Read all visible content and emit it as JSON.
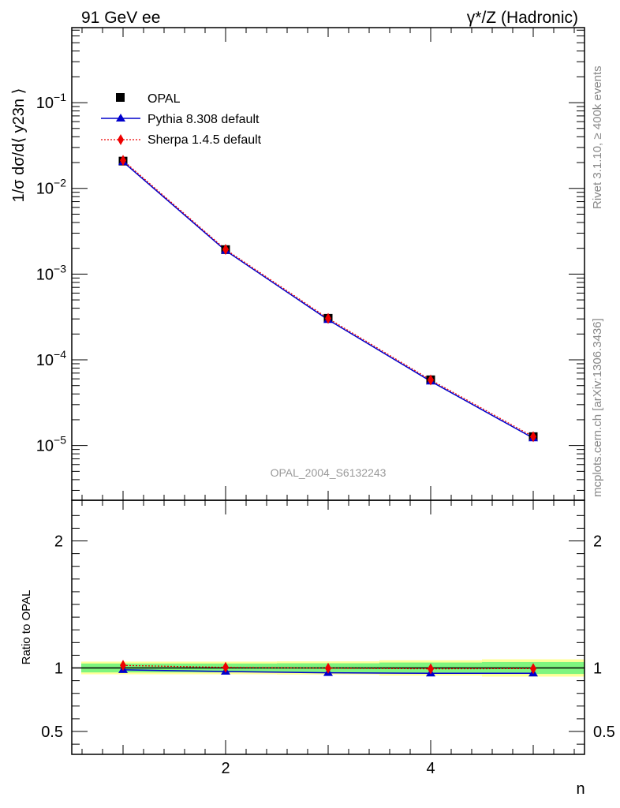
{
  "header": {
    "left": "91 GeV ee",
    "right": "γ*/Z (Hadronic)"
  },
  "side": {
    "rivet": "Rivet 3.1.10, ≥ 400k events",
    "mcplots": "mcplots.cern.ch [arXiv:1306.3436]"
  },
  "watermark": "OPAL_2004_S6132243",
  "colors": {
    "data": "#000000",
    "pythia": "#0000cc",
    "sherpa": "#ee0000",
    "band_inner": "#7ff57f",
    "band_outer": "#ffff99"
  },
  "chart_data": [
    {
      "type": "line",
      "title": "",
      "xlabel": "n",
      "ylabel": "1/σ dσ/d⟨ y23n ⟩",
      "yscale": "log",
      "xlim": [
        0.5,
        5.5
      ],
      "ylim": [
        2.3e-06,
        0.75
      ],
      "x": [
        1,
        2,
        3,
        4,
        5
      ],
      "y_ticks": [
        "10−5",
        "10−4",
        "10−3",
        "10−2",
        "10−1"
      ],
      "series": [
        {
          "name": "OPAL",
          "values": [
            0.0208,
            0.00193,
            0.000305,
            5.85e-05,
            1.27e-05
          ]
        },
        {
          "name": "Pythia 8.308 default",
          "values": [
            0.0204,
            0.00188,
            0.000293,
            5.62e-05,
            1.22e-05
          ]
        },
        {
          "name": "Sherpa 1.4.5 default",
          "values": [
            0.0212,
            0.00194,
            0.000304,
            5.83e-05,
            1.27e-05
          ]
        }
      ]
    },
    {
      "type": "line",
      "title": "",
      "xlabel": "n",
      "ylabel": "Ratio to OPAL",
      "xlim": [
        0.5,
        5.5
      ],
      "ylim": [
        0.32,
        2.32
      ],
      "x": [
        1,
        2,
        3,
        4,
        5
      ],
      "x_ticks": [
        "2",
        "4"
      ],
      "y_ticks": [
        "0.5",
        "1",
        "2"
      ],
      "series": [
        {
          "name": "Pythia 8.308 default",
          "values": [
            0.985,
            0.972,
            0.962,
            0.958,
            0.958
          ]
        },
        {
          "name": "Sherpa 1.4.5 default",
          "values": [
            1.02,
            1.005,
            0.998,
            0.993,
            0.995
          ]
        }
      ],
      "bands": {
        "inner_halfwidth": [
          0.035,
          0.035,
          0.037,
          0.043,
          0.047
        ],
        "outer_halfwidth": [
          0.05,
          0.05,
          0.052,
          0.06,
          0.068
        ]
      }
    }
  ]
}
